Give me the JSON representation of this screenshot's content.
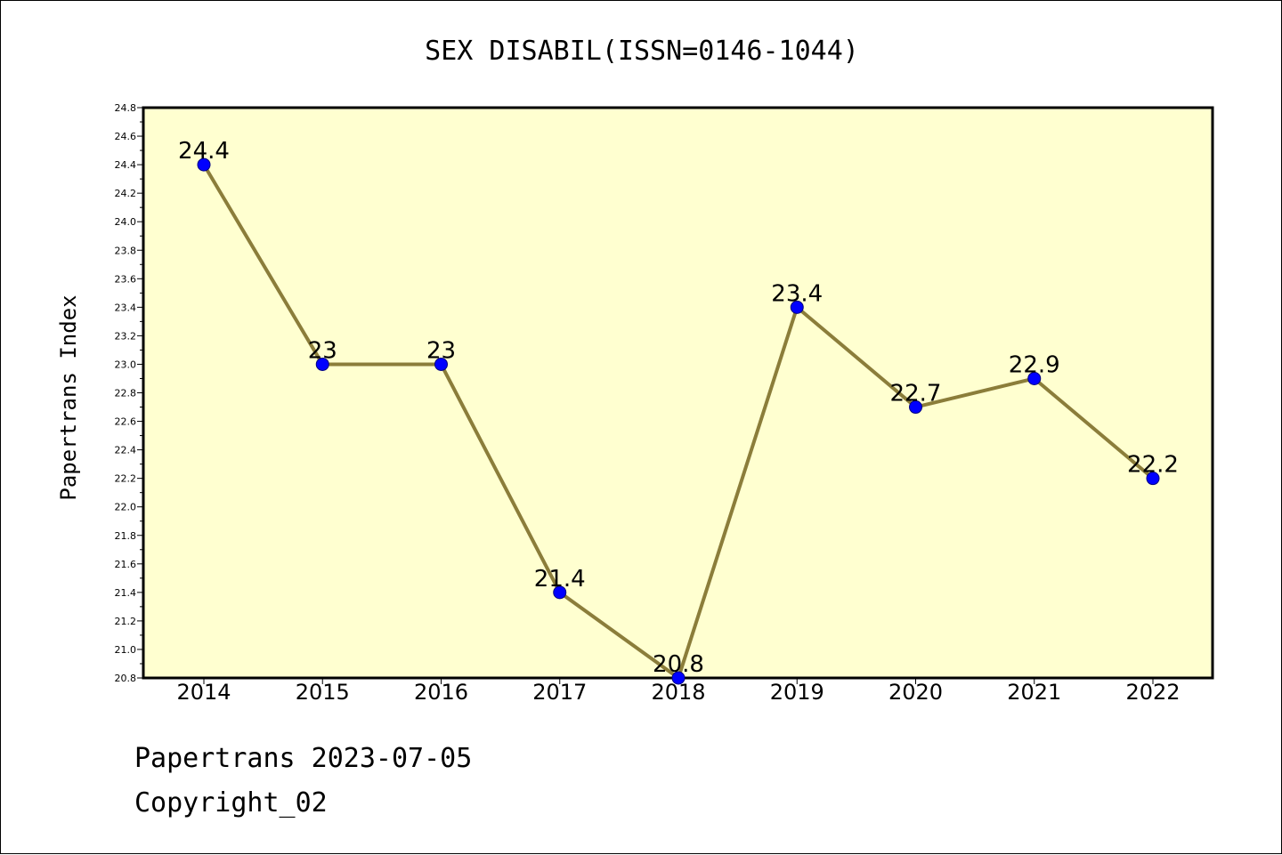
{
  "chart_data": {
    "type": "line",
    "title": "SEX DISABIL(ISSN=0146-1044)",
    "xlabel": "",
    "ylabel": "Papertrans Index",
    "categories": [
      "2014",
      "2015",
      "2016",
      "2017",
      "2018",
      "2019",
      "2020",
      "2021",
      "2022"
    ],
    "series": [
      {
        "values": [
          24.4,
          23.0,
          23.0,
          21.4,
          20.8,
          23.4,
          22.7,
          22.9,
          22.2
        ],
        "labels": [
          "24.4",
          "23",
          "23",
          "21.4",
          "20.8",
          "23.4",
          "22.7",
          "22.9",
          "22.2"
        ]
      }
    ],
    "ylim": [
      20.8,
      24.8
    ],
    "yticks": [
      "20.8",
      "21.0",
      "21.2",
      "21.4",
      "21.6",
      "21.8",
      "22.0",
      "22.2",
      "22.4",
      "22.6",
      "22.8",
      "23.0",
      "23.2",
      "23.4",
      "23.6",
      "23.8",
      "24.0",
      "24.2",
      "24.4",
      "24.6",
      "24.8"
    ],
    "grid": false,
    "legend": "none",
    "colors": {
      "plot_background": "#ffffd0",
      "line": "#8b7d3a",
      "marker": "#0000ff",
      "axis": "#000000"
    }
  },
  "footer": {
    "line1": "Papertrans 2023-07-05",
    "line2": "Copyright_02"
  }
}
